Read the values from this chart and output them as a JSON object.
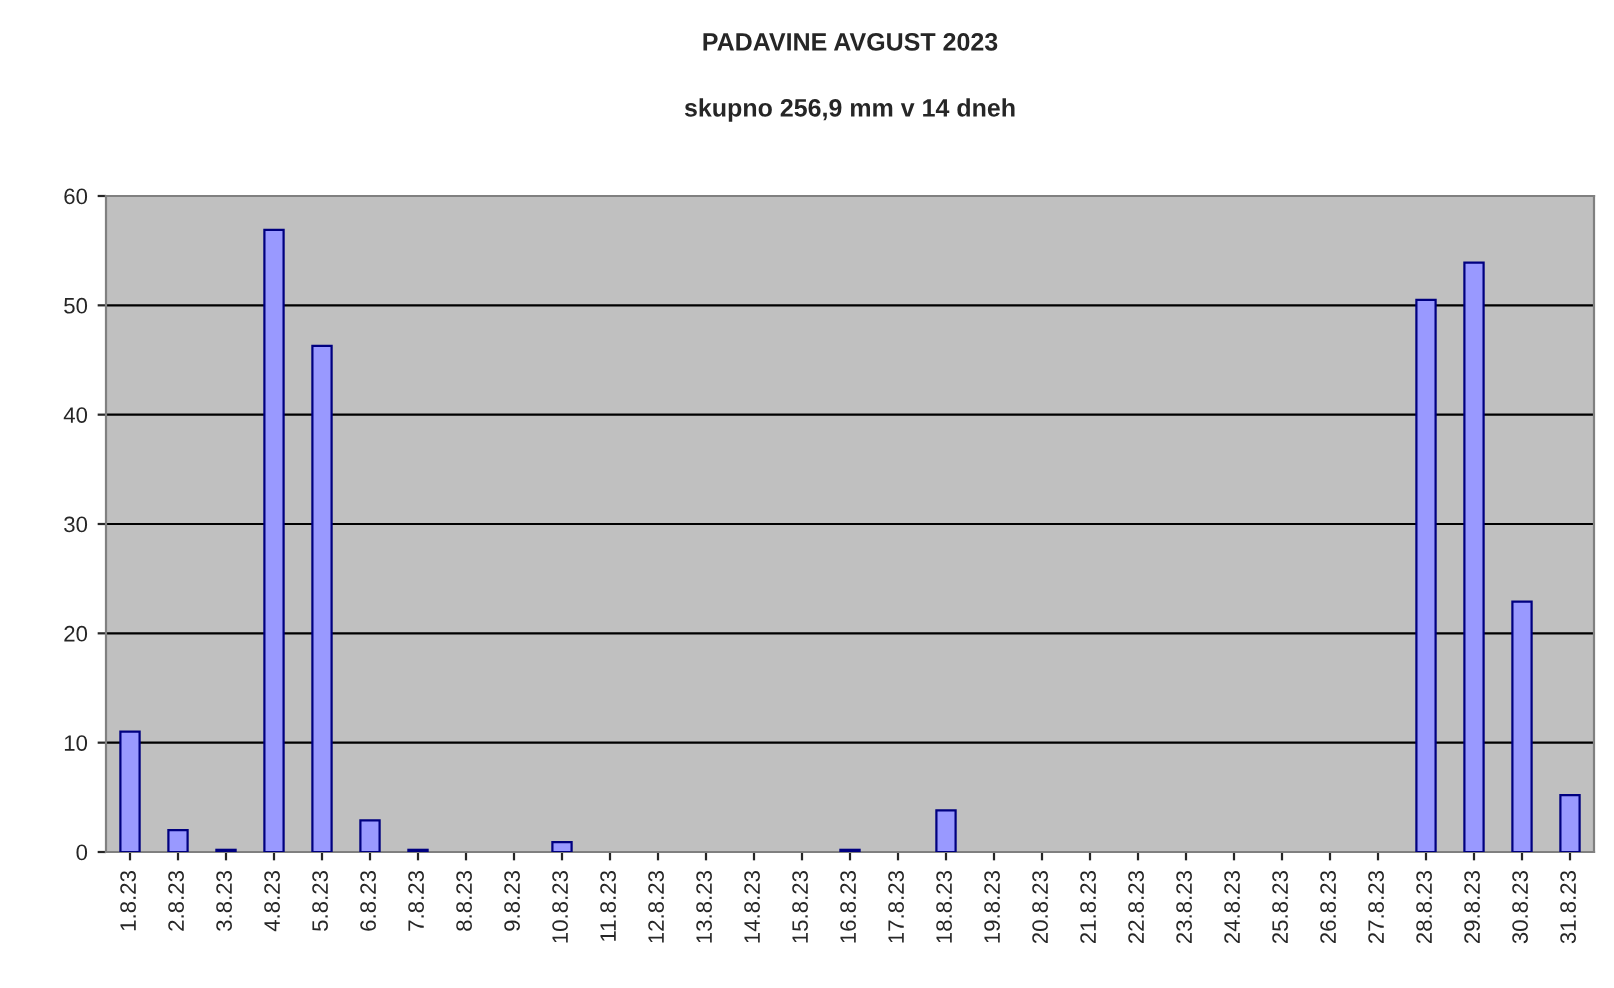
{
  "chart_data": {
    "type": "bar",
    "title": "PADAVINE AVGUST 2023",
    "subtitle": "skupno 256,9 mm v 14 dneh",
    "categories": [
      "1.8.23",
      "2.8.23",
      "3.8.23",
      "4.8.23",
      "5.8.23",
      "6.8.23",
      "7.8.23",
      "8.8.23",
      "9.8.23",
      "10.8.23",
      "11.8.23",
      "12.8.23",
      "13.8.23",
      "14.8.23",
      "15.8.23",
      "16.8.23",
      "17.8.23",
      "18.8.23",
      "19.8.23",
      "20.8.23",
      "21.8.23",
      "22.8.23",
      "23.8.23",
      "24.8.23",
      "25.8.23",
      "26.8.23",
      "27.8.23",
      "28.8.23",
      "29.8.23",
      "30.8.23",
      "31.8.23"
    ],
    "values": [
      11,
      2,
      0.2,
      56.9,
      46.3,
      2.9,
      0.2,
      0,
      0,
      0.9,
      0,
      0,
      0,
      0,
      0,
      0.2,
      0,
      3.8,
      0,
      0,
      0,
      0,
      0,
      0,
      0,
      0,
      0,
      50.5,
      53.9,
      22.9,
      5.2
    ],
    "color": "#9999ff",
    "ylim": [
      0,
      60
    ],
    "yticks": [
      0,
      10,
      20,
      30,
      40,
      50,
      60
    ],
    "grid": "y",
    "legend": false
  }
}
